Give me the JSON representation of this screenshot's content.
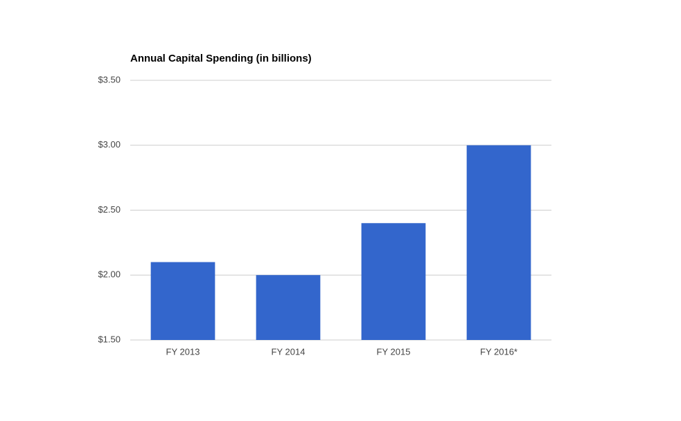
{
  "chart_data": {
    "type": "bar",
    "title": "Annual Capital Spending (in billions)",
    "categories": [
      "FY 2013",
      "FY 2014",
      "FY 2015",
      "FY 2016*"
    ],
    "values": [
      2.1,
      2.0,
      2.4,
      3.0
    ],
    "color": "#3366cc",
    "ylim": [
      1.5,
      3.5
    ],
    "yticks": [
      {
        "value": 1.5,
        "label": "$1.50"
      },
      {
        "value": 2.0,
        "label": "$2.00"
      },
      {
        "value": 2.5,
        "label": "$2.50"
      },
      {
        "value": 3.0,
        "label": "$3.00"
      },
      {
        "value": 3.5,
        "label": "$3.50"
      }
    ],
    "grid": true
  }
}
